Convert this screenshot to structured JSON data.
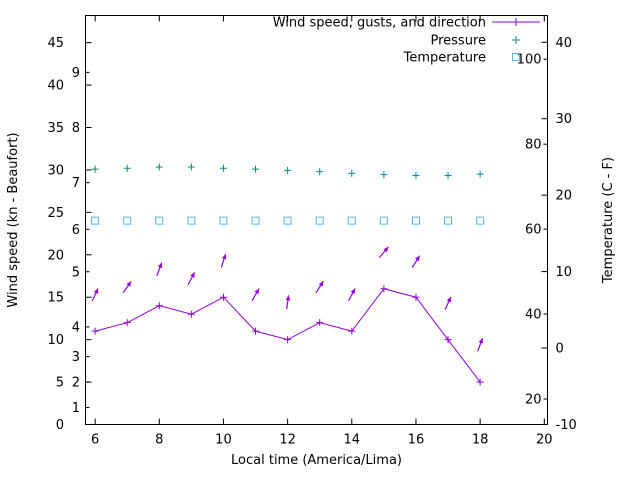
{
  "chart_data": {
    "type": "line",
    "title": "",
    "x_hours": [
      6,
      7,
      8,
      9,
      10,
      11,
      12,
      13,
      14,
      15,
      16,
      17,
      18
    ],
    "series": [
      {
        "name": "Wind speed, gusts, and direction",
        "color": "#9400d3",
        "marker": "plus",
        "style": "line_markers",
        "axis": "left",
        "values": [
          11,
          12,
          14,
          13,
          15,
          11,
          10,
          12,
          11,
          16,
          15,
          10,
          5
        ]
      },
      {
        "name": "Pressure",
        "color": "#008b8b",
        "marker": "plus",
        "style": "markers",
        "axis": "left",
        "values": [
          30.1,
          30.2,
          30.35,
          30.35,
          30.2,
          30.1,
          29.95,
          29.8,
          29.6,
          29.45,
          29.35,
          29.35,
          29.5
        ]
      },
      {
        "name": "Temperature",
        "color": "#56b4e9",
        "marker": "square_open",
        "style": "markers",
        "axis": "right_f",
        "values": [
          62,
          62,
          62,
          62,
          62,
          62,
          62,
          62,
          62,
          62,
          62,
          62,
          62
        ]
      }
    ],
    "wind_arrows": [
      {
        "x": 6,
        "y": 15.3,
        "angle_deg": 65
      },
      {
        "x": 7,
        "y": 16.2,
        "angle_deg": 55
      },
      {
        "x": 8,
        "y": 18.3,
        "angle_deg": 70
      },
      {
        "x": 9,
        "y": 17.2,
        "angle_deg": 62
      },
      {
        "x": 10,
        "y": 19.3,
        "angle_deg": 72
      },
      {
        "x": 11,
        "y": 15.3,
        "angle_deg": 60
      },
      {
        "x": 12,
        "y": 14.4,
        "angle_deg": 82
      },
      {
        "x": 13,
        "y": 16.2,
        "angle_deg": 58
      },
      {
        "x": 14,
        "y": 15.3,
        "angle_deg": 62
      },
      {
        "x": 15,
        "y": 20.3,
        "angle_deg": 50
      },
      {
        "x": 16,
        "y": 19.2,
        "angle_deg": 58
      },
      {
        "x": 17,
        "y": 14.3,
        "angle_deg": 65
      },
      {
        "x": 18,
        "y": 9.4,
        "angle_deg": 70
      }
    ],
    "axes": {
      "x": {
        "label": "Local time (America/Lima)",
        "range": [
          5.7,
          20.1
        ],
        "ticks": [
          6,
          8,
          10,
          12,
          14,
          16,
          18,
          20
        ]
      },
      "left": {
        "label": "Wind speed (kn - Beaufort)",
        "range": [
          0,
          48.2
        ],
        "ticks": [
          0,
          5,
          10,
          15,
          20,
          25,
          30,
          35,
          40,
          45
        ],
        "beaufort": [
          {
            "label": "1",
            "kn": 2
          },
          {
            "label": "2",
            "kn": 5
          },
          {
            "label": "3",
            "kn": 8
          },
          {
            "label": "4",
            "kn": 11.5
          },
          {
            "label": "5",
            "kn": 18
          },
          {
            "label": "6",
            "kn": 23
          },
          {
            "label": "7",
            "kn": 28.5
          },
          {
            "label": "8",
            "kn": 35
          },
          {
            "label": "9",
            "kn": 41.5
          }
        ]
      },
      "right": {
        "label": "Temperature (C - F)",
        "range_c": [
          -10,
          43.5
        ],
        "ticks_c": [
          -10,
          0,
          10,
          20,
          30,
          40
        ],
        "ticks_f": [
          20,
          40,
          60,
          80,
          100
        ]
      }
    },
    "legend": {
      "items": [
        "Wind speed, gusts, and direction",
        "Pressure",
        "Temperature"
      ]
    },
    "colors": {
      "wind": "#9400d3",
      "pressure": "#008b8b",
      "temperature": "#56b4e9",
      "axis": "#000000",
      "background": "#ffffff"
    }
  }
}
